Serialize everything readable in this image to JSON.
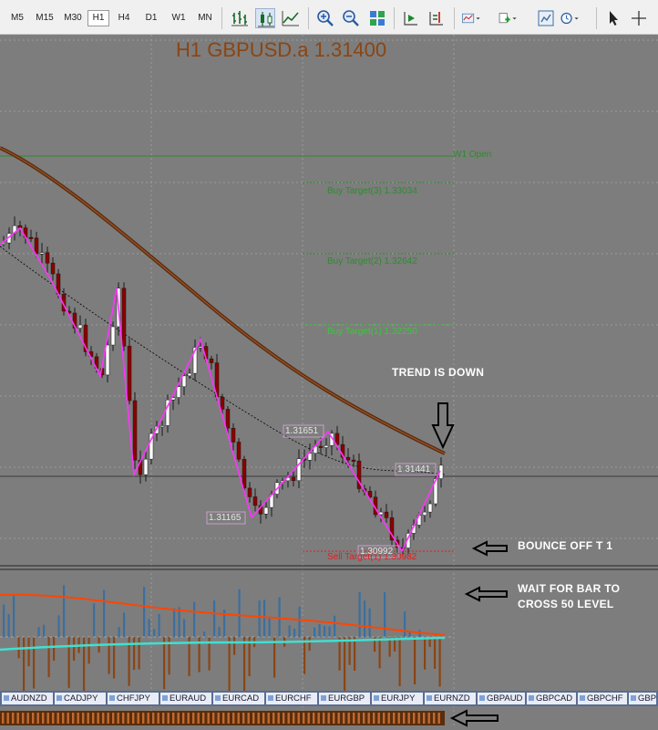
{
  "toolbar": {
    "timeframes": [
      "M5",
      "M15",
      "M30",
      "H1",
      "H4",
      "D1",
      "W1",
      "MN"
    ],
    "active_timeframe": "H1",
    "buttons": [
      "bar-chart-icon",
      "candlestick-icon",
      "line-chart-icon",
      "zoom-in-icon",
      "zoom-out-icon",
      "tile-windows-icon",
      "autoscroll-icon",
      "chart-shift-icon",
      "indicators-icon",
      "templates-icon",
      "periodicity-icon",
      "clock-icon",
      "cursor-icon",
      "crosshair-icon"
    ]
  },
  "chart": {
    "title": "H1 GBPUSD.a 1.31400",
    "price_levels": [
      {
        "label": "W1 Open",
        "color": "#2e8b2e"
      },
      {
        "label": "Buy Target(3) 1.33034",
        "color": "#2e8b2e"
      },
      {
        "label": "Buy Target(2) 1.32642",
        "color": "#2e8b2e"
      },
      {
        "label": "Buy Target(1) 1.32250",
        "color": "#33cc33"
      },
      {
        "label": "Sell Target(1) 1.30982",
        "color": "#e02020"
      }
    ],
    "swing_labels": [
      "1.31165",
      "1.31651",
      "1.31441",
      "1.30992"
    ],
    "annotations": {
      "trend": "TREND IS DOWN",
      "bounce": "BOUNCE OFF T 1",
      "wait_line1": "WAIT FOR BAR TO",
      "wait_line2": "CROSS 50 LEVEL"
    },
    "colors": {
      "background": "#7d7d7d",
      "bull_candle": "#ffffff",
      "bear_candle": "#8b0000",
      "zigzag": "#ff33ff",
      "ma_slow": "#5a2d0c",
      "ma_fast": "#000000",
      "osc_bar_up": "#3a6fa0",
      "osc_bar_down": "#8b4513",
      "osc_line_red": "#ff4500",
      "osc_line_cyan": "#40e0d0"
    }
  },
  "symbol_tabs": [
    "AUDNZD",
    "CADJPY",
    "CHFJPY",
    "EURAUD",
    "EURCAD",
    "EURCHF",
    "EURGBP",
    "EURJPY",
    "EURNZD",
    "GBPAUD",
    "GBPCAD",
    "GBPCHF",
    "GBPJPY"
  ]
}
